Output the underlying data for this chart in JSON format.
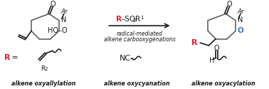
{
  "background_color": "#ffffff",
  "red_color": "#e8192c",
  "blue_color": "#4472c4",
  "black_color": "#1a1a1a",
  "gray_ring": "#555555",
  "label1": "alkene oxyallylation",
  "label2": "alkene oxycyanation",
  "label3": "alkene oxyacylation",
  "figsize": [
    3.78,
    1.25
  ],
  "dpi": 100
}
